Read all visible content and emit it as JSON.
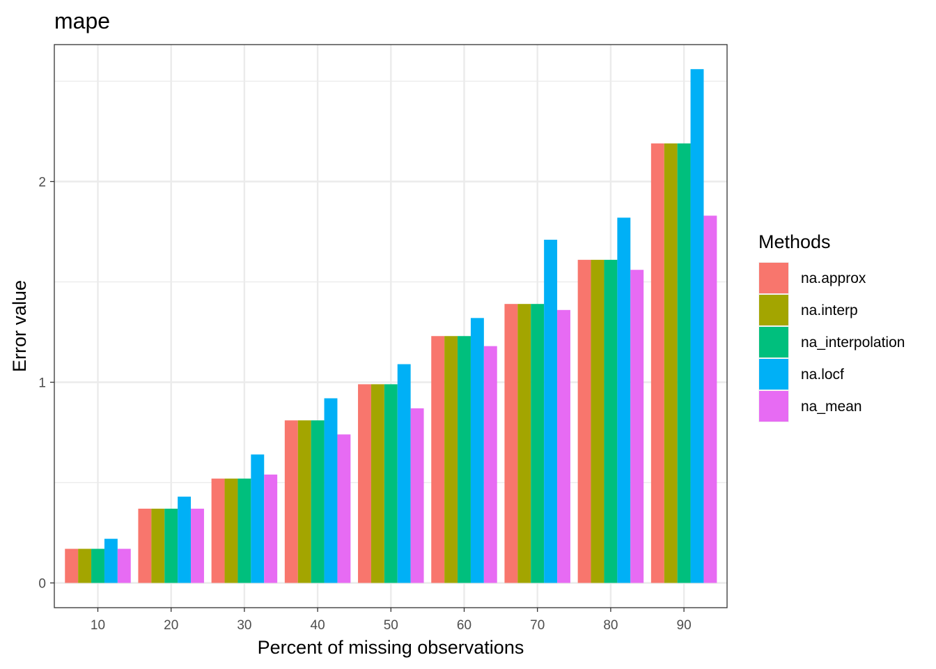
{
  "chart_data": {
    "type": "bar",
    "title": "mape",
    "xlabel": "Percent of missing observations",
    "ylabel": "Error value",
    "categories": [
      "10",
      "20",
      "30",
      "40",
      "50",
      "60",
      "70",
      "80",
      "90"
    ],
    "y_ticks": [
      "0",
      "1",
      "2"
    ],
    "ylim": [
      -0.12,
      2.68
    ],
    "grid": true,
    "legend": {
      "title": "Methods",
      "position": "right"
    },
    "series": [
      {
        "name": "na.approx",
        "color": "#F8766D",
        "values": [
          0.17,
          0.37,
          0.52,
          0.81,
          0.99,
          1.23,
          1.39,
          1.61,
          2.19
        ]
      },
      {
        "name": "na.interp",
        "color": "#A3A500",
        "values": [
          0.17,
          0.37,
          0.52,
          0.81,
          0.99,
          1.23,
          1.39,
          1.61,
          2.19
        ]
      },
      {
        "name": "na_interpolation",
        "color": "#00BF7D",
        "values": [
          0.17,
          0.37,
          0.52,
          0.81,
          0.99,
          1.23,
          1.39,
          1.61,
          2.19
        ]
      },
      {
        "name": "na.locf",
        "color": "#00B0F6",
        "values": [
          0.22,
          0.43,
          0.64,
          0.92,
          1.09,
          1.32,
          1.71,
          1.82,
          2.56
        ]
      },
      {
        "name": "na_mean",
        "color": "#E76BF3",
        "values": [
          0.17,
          0.37,
          0.54,
          0.74,
          0.87,
          1.18,
          1.36,
          1.56,
          1.83
        ]
      }
    ]
  }
}
